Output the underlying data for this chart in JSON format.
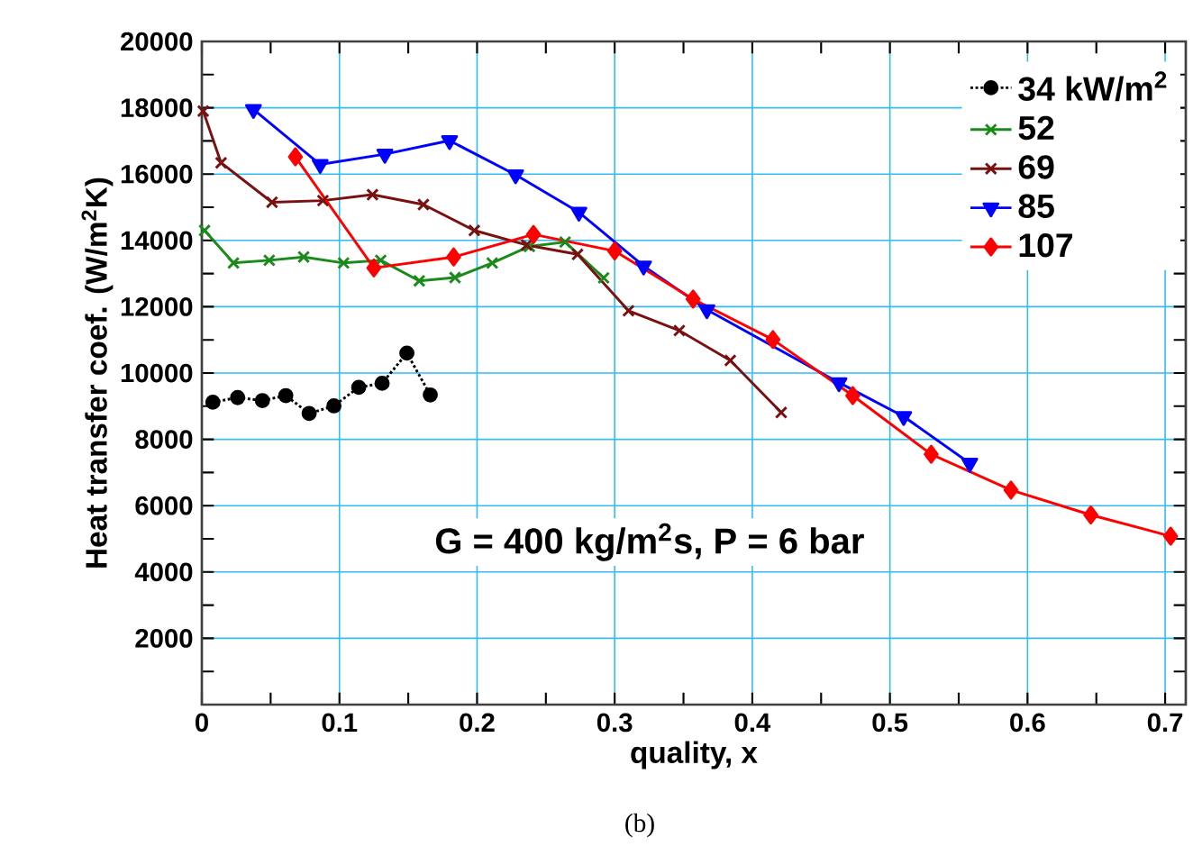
{
  "chart_data": {
    "type": "line",
    "xlabel": "quality, x",
    "ylabel": "Heat transfer coef. (W/m$^{2}$K)",
    "annotations": [
      "G = 400 kg/m$^{2}$s, P = 6 bar",
      "(b)"
    ],
    "xlim": [
      0,
      0.715
    ],
    "ylim": [
      0,
      20000
    ],
    "xticks": [
      0,
      0.1,
      0.2,
      0.3,
      0.4,
      0.5,
      0.6,
      0.7
    ],
    "yticks": [
      {
        "value": 0,
        "label": null
      },
      2000,
      4000,
      6000,
      8000,
      10000,
      12000,
      14000,
      16000,
      18000,
      20000
    ],
    "grid": true,
    "legend": "top right",
    "series": [
      {
        "name": "34 kW/m$^{2}$",
        "color": "#000000",
        "marker": "circle",
        "line_style": "dotted",
        "x": [
          0.008,
          0.026,
          0.044,
          0.061,
          0.078,
          0.096,
          0.114,
          0.131,
          0.149,
          0.166
        ],
        "values": [
          9120,
          9260,
          9170,
          9320,
          8780,
          9010,
          9570,
          9690,
          10600,
          9340
        ]
      },
      {
        "name": "52",
        "color": "#1a8a1a",
        "marker": "cross",
        "line_style": "solid",
        "x": [
          0.002,
          0.023,
          0.049,
          0.074,
          0.103,
          0.13,
          0.158,
          0.184,
          0.211,
          0.238,
          0.264,
          0.292
        ],
        "values": [
          14300,
          13320,
          13400,
          13500,
          13320,
          13400,
          12780,
          12880,
          13320,
          13820,
          13950,
          12870
        ]
      },
      {
        "name": "69",
        "color": "#7a1010",
        "marker": "cross",
        "line_style": "solid",
        "x": [
          0.001,
          0.014,
          0.051,
          0.088,
          0.124,
          0.161,
          0.198,
          0.236,
          0.273,
          0.31,
          0.347,
          0.384,
          0.421
        ],
        "values": [
          17900,
          16340,
          15150,
          15200,
          15380,
          15080,
          14300,
          13860,
          13580,
          11880,
          11280,
          10380,
          8810
        ]
      },
      {
        "name": "85",
        "color": "#0000ff",
        "marker": "triangle",
        "line_style": "solid",
        "x": [
          0.0375,
          0.086,
          0.133,
          0.18,
          0.228,
          0.274,
          0.321,
          0.367,
          0.463,
          0.51,
          0.558
        ],
        "values": [
          17950,
          16290,
          16600,
          17010,
          15980,
          14850,
          13230,
          11910,
          9710,
          8690,
          7280
        ]
      },
      {
        "name": "107",
        "color": "#ff0000",
        "marker": "diamond",
        "line_style": "solid",
        "x": [
          0.068,
          0.125,
          0.183,
          0.241,
          0.3,
          0.357,
          0.415,
          0.473,
          0.53,
          0.588,
          0.646,
          0.704
        ],
        "values": [
          16520,
          13170,
          13500,
          14180,
          13680,
          12230,
          11010,
          9320,
          7550,
          6470,
          5720,
          5080
        ]
      }
    ]
  }
}
